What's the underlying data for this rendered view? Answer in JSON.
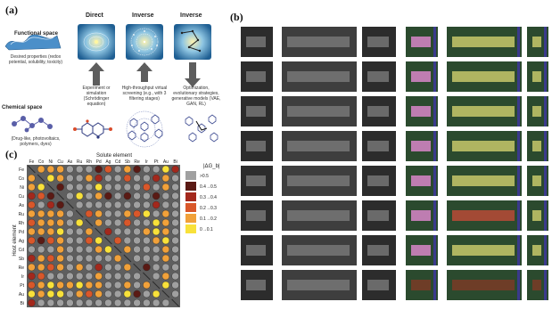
{
  "panel_a": {
    "label": "(a)",
    "functional_space": "Functional space",
    "functional_desc": "Desired properties (redox potential, solubility, toxicity)",
    "chemical_space": "Chemical space",
    "chemical_desc": "(Drug-like, photovoltaics, polymers, dyes)",
    "col_direct": "Direct",
    "col_inverse1": "Inverse",
    "col_inverse2": "Inverse",
    "desc_direct": "Experiment or simulation (Schrödinger equation)",
    "desc_inverse1": "High-throughput virtual screening (e.g., with 3 filtering stages)",
    "desc_inverse2": "Optimization, evolutionary strategies, generative models (VAE, GAN, RL)"
  },
  "panel_b": {
    "label": "(b)"
  },
  "panel_c": {
    "label": "(c)",
    "solute_title": "Solute element",
    "host_title": "Host element",
    "legend_title": "|ΔG_b|",
    "elements": [
      "Fe",
      "Co",
      "Ni",
      "Cu",
      "As",
      "Ru",
      "Rh",
      "Pd",
      "Ag",
      "Cd",
      "Sb",
      "Re",
      "Ir",
      "Pt",
      "Au",
      "Bi"
    ],
    "legend": [
      {
        "label": ">0.5",
        "color": "#a0a0a0"
      },
      {
        "label": "0.4→0.5",
        "color": "#5a1a14"
      },
      {
        "label": "0.3→0.4",
        "color": "#a3281c"
      },
      {
        "label": "0.2→0.3",
        "color": "#d9572a"
      },
      {
        "label": "0.1→0.2",
        "color": "#f1a13a"
      },
      {
        "label": "0→0.1",
        "color": "#f8e13a"
      }
    ],
    "matrix": [
      [
        0,
        4,
        4,
        4,
        0,
        0,
        0,
        1,
        3,
        0,
        4,
        1,
        0,
        0,
        5,
        2
      ],
      [
        4,
        0,
        5,
        4,
        0,
        0,
        4,
        2,
        0,
        0,
        3,
        0,
        0,
        2,
        4,
        0
      ],
      [
        4,
        5,
        0,
        1,
        0,
        0,
        0,
        5,
        0,
        0,
        0,
        0,
        3,
        0,
        4,
        0
      ],
      [
        2,
        3,
        1,
        0,
        0,
        5,
        0,
        4,
        1,
        0,
        1,
        0,
        0,
        1,
        0,
        0
      ],
      [
        3,
        0,
        2,
        1,
        0,
        0,
        0,
        0,
        0,
        0,
        0,
        0,
        0,
        2,
        0,
        0
      ],
      [
        4,
        4,
        4,
        4,
        0,
        0,
        3,
        4,
        0,
        0,
        4,
        3,
        5,
        0,
        4,
        0
      ],
      [
        3,
        4,
        4,
        4,
        0,
        5,
        0,
        4,
        0,
        0,
        3,
        0,
        0,
        5,
        4,
        0
      ],
      [
        4,
        4,
        4,
        5,
        0,
        0,
        4,
        0,
        2,
        0,
        0,
        0,
        4,
        5,
        4,
        0
      ],
      [
        3,
        1,
        3,
        4,
        0,
        0,
        3,
        5,
        0,
        3,
        0,
        0,
        0,
        4,
        5,
        0
      ],
      [
        0,
        0,
        0,
        4,
        0,
        0,
        0,
        4,
        5,
        0,
        4,
        0,
        0,
        0,
        4,
        0
      ],
      [
        2,
        4,
        3,
        4,
        0,
        0,
        0,
        0,
        0,
        4,
        0,
        0,
        0,
        0,
        4,
        0
      ],
      [
        4,
        4,
        3,
        4,
        0,
        4,
        0,
        2,
        0,
        0,
        4,
        0,
        1,
        0,
        0,
        0
      ],
      [
        2,
        3,
        0,
        0,
        0,
        0,
        0,
        4,
        0,
        0,
        0,
        0,
        0,
        0,
        4,
        0
      ],
      [
        3,
        4,
        5,
        4,
        4,
        5,
        4,
        4,
        0,
        0,
        4,
        0,
        4,
        0,
        5,
        0
      ],
      [
        5,
        4,
        5,
        5,
        0,
        4,
        3,
        4,
        0,
        0,
        5,
        1,
        0,
        5,
        0,
        0
      ],
      [
        2,
        0,
        0,
        0,
        0,
        0,
        0,
        0,
        0,
        0,
        0,
        0,
        0,
        0,
        0,
        0
      ]
    ]
  }
}
